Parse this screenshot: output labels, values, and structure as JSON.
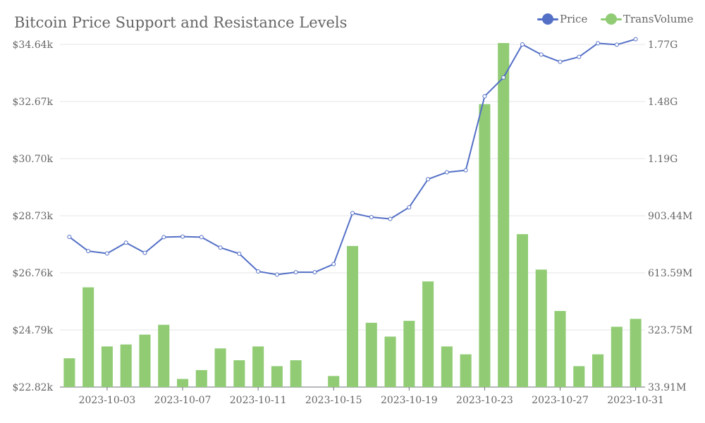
{
  "chart_data": {
    "type": "bar+line",
    "title": "Bitcoin Price Support and Resistance Levels",
    "legend": {
      "placement": "top-right",
      "items": [
        {
          "name": "Price",
          "color": "#5470c6"
        },
        {
          "name": "TransVolume",
          "color": "#91cc75"
        }
      ]
    },
    "x": [
      "2023-10-01",
      "2023-10-02",
      "2023-10-03",
      "2023-10-04",
      "2023-10-05",
      "2023-10-06",
      "2023-10-07",
      "2023-10-08",
      "2023-10-09",
      "2023-10-10",
      "2023-10-11",
      "2023-10-12",
      "2023-10-13",
      "2023-10-14",
      "2023-10-15",
      "2023-10-16",
      "2023-10-17",
      "2023-10-18",
      "2023-10-19",
      "2023-10-20",
      "2023-10-21",
      "2023-10-22",
      "2023-10-23",
      "2023-10-24",
      "2023-10-25",
      "2023-10-26",
      "2023-10-27",
      "2023-10-28",
      "2023-10-29",
      "2023-10-30",
      "2023-10-31"
    ],
    "x_tick_labels": [
      "2023-10-03",
      "2023-10-07",
      "2023-10-11",
      "2023-10-15",
      "2023-10-19",
      "2023-10-23",
      "2023-10-27",
      "2023-10-31"
    ],
    "y_left": {
      "range": [
        22820,
        34640
      ],
      "tick_labels": [
        "$22.82k",
        "$24.79k",
        "$26.76k",
        "$28.73k",
        "$30.70k",
        "$32.67k",
        "$34.64k"
      ]
    },
    "y_right": {
      "range": [
        33910000,
        1772950000
      ],
      "tick_labels": [
        "33.91M",
        "323.75M",
        "613.59M",
        "903.44M",
        "1.19G",
        "1.48G",
        "1.77G"
      ]
    },
    "grid": true,
    "series": [
      {
        "name": "Price",
        "type": "line",
        "axis": "left",
        "color": "#5470c6",
        "values": [
          28000,
          27510,
          27430,
          27800,
          27450,
          27990,
          28010,
          27990,
          27630,
          27420,
          26810,
          26700,
          26780,
          26780,
          27060,
          28820,
          28680,
          28620,
          29020,
          29990,
          30230,
          30300,
          32850,
          33500,
          34640,
          34290,
          34040,
          34210,
          34680,
          34630,
          34820
        ]
      },
      {
        "name": "TransVolume",
        "type": "bar",
        "axis": "right",
        "color": "#91cc75",
        "values": [
          180000000,
          540000000,
          240000000,
          250000000,
          300000000,
          350000000,
          75000000,
          120000000,
          230000000,
          170000000,
          240000000,
          140000000,
          170000000,
          0,
          90000000,
          750000000,
          360000000,
          290000000,
          370000000,
          570000000,
          240000000,
          200000000,
          1470000000,
          1780000000,
          810000000,
          630000000,
          420000000,
          140000000,
          200000000,
          340000000,
          380000000
        ]
      }
    ]
  }
}
